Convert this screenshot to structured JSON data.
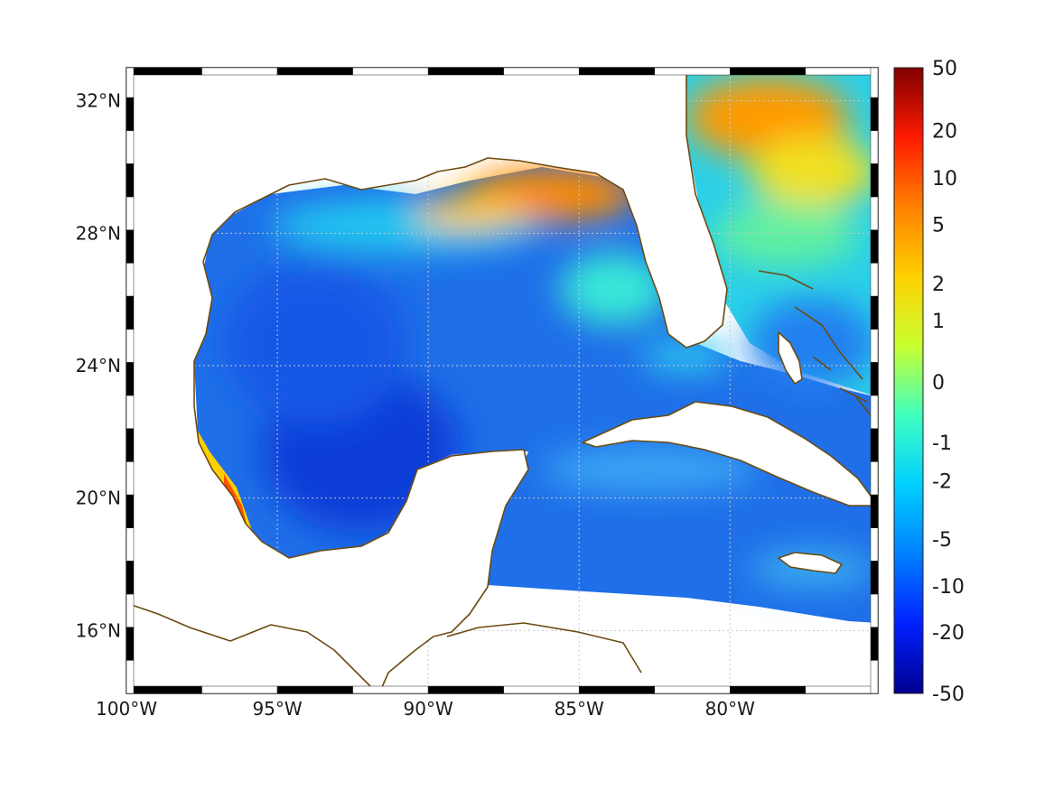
{
  "map": {
    "longitude_ticks": [
      {
        "lon": -100,
        "label": "100°W"
      },
      {
        "lon": -95,
        "label": "95°W"
      },
      {
        "lon": -90,
        "label": "90°W"
      },
      {
        "lon": -85,
        "label": "85°W"
      },
      {
        "lon": -80,
        "label": "80°W"
      }
    ],
    "latitude_ticks": [
      {
        "lat": 32,
        "label": "32°N"
      },
      {
        "lat": 28,
        "label": "28°N"
      },
      {
        "lat": 24,
        "label": "24°N"
      },
      {
        "lat": 20,
        "label": "20°N"
      },
      {
        "lat": 16,
        "label": "16°N"
      }
    ],
    "extent": {
      "lon_min": -100,
      "lon_max": -75.1,
      "lat_min": 14.1,
      "lat_max": 33.0
    },
    "field_pattern": "high values (orange/red) along northern Gulf coast and off Georgia/South Carolina; low values (blue) over central Gulf; cyan/green transitions near coasts and Caribbean",
    "coastline_color": "#6b4a12",
    "grid": true
  },
  "colorbar": {
    "labels": [
      "50",
      "20",
      "10",
      "5",
      "2",
      "1",
      "0",
      "-1",
      "-2",
      "-5",
      "-10",
      "-20",
      "-50"
    ],
    "colors": [
      "#7f0000",
      "#ff1a00",
      "#ff8000",
      "#ffd000",
      "#c8ff30",
      "#40ffc0",
      "#00d0ff",
      "#0080ff",
      "#0020ff",
      "#00008f"
    ]
  }
}
